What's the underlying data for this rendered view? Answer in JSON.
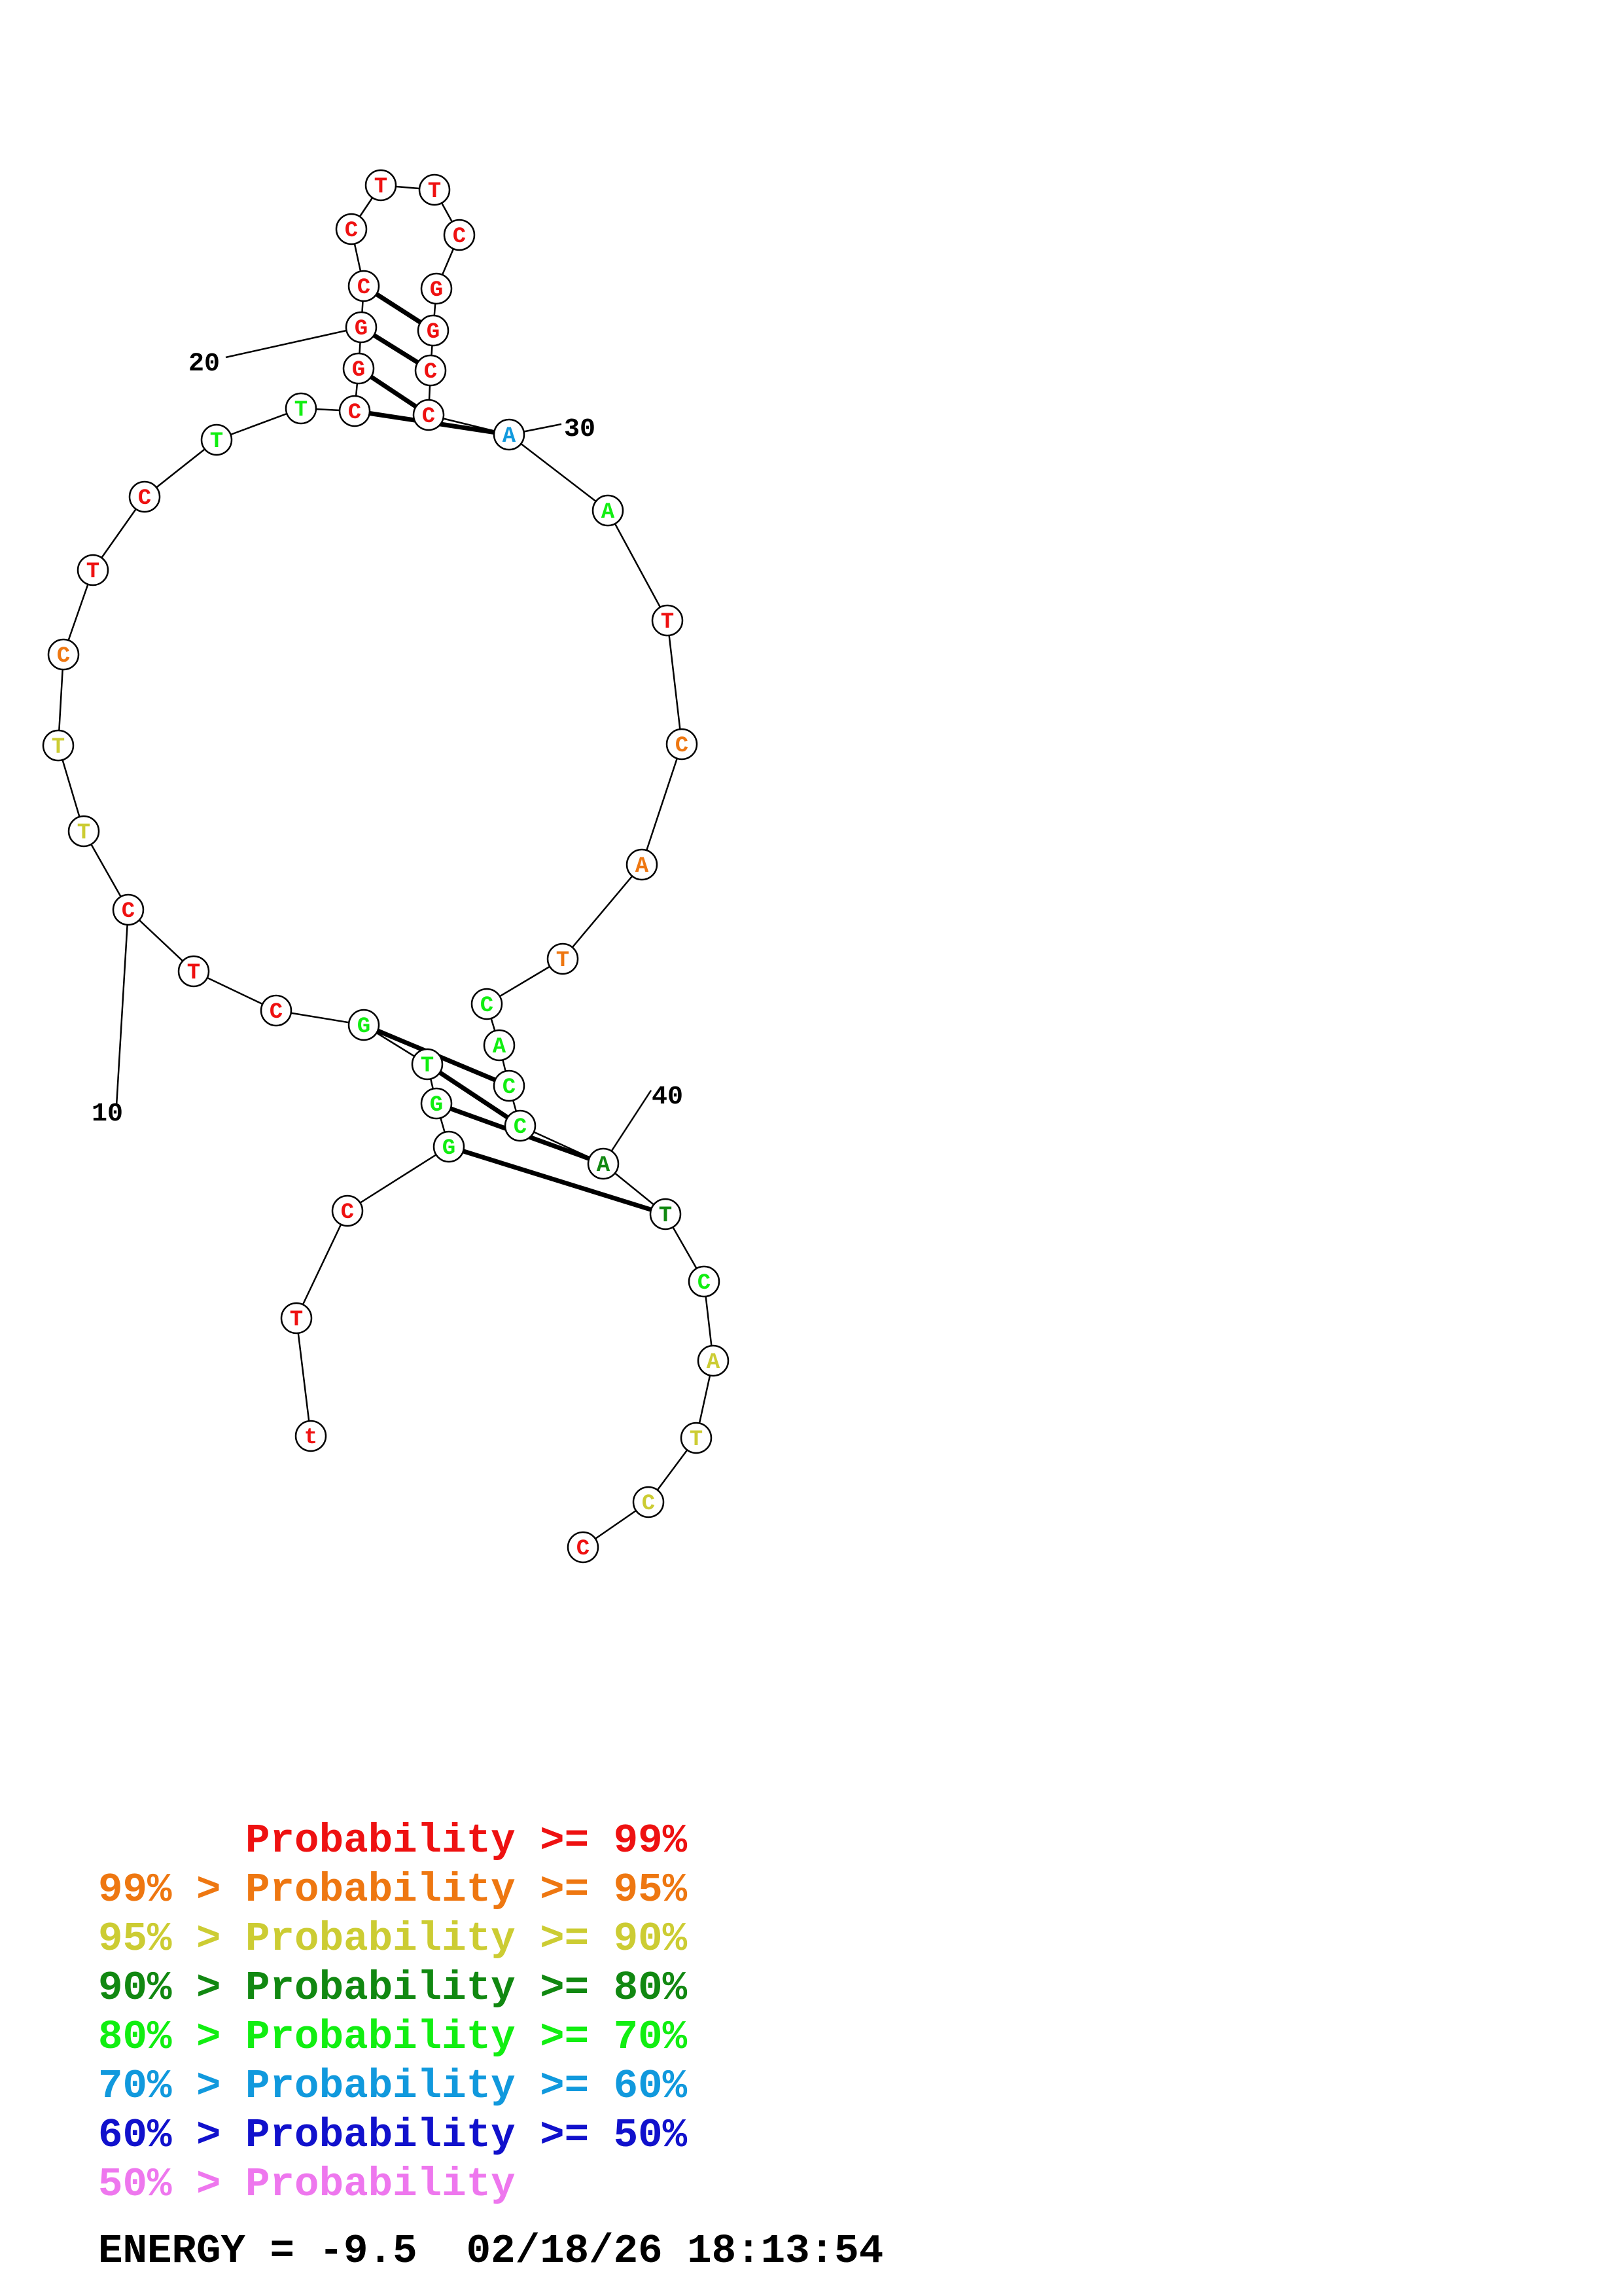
{
  "colors": {
    "p99": "#ee1111",
    "p95": "#ee7711",
    "p90": "#cccc33",
    "p80": "#118811",
    "p70": "#11ee11",
    "p60": "#1199dd",
    "p50": "#1111cc",
    "plow": "#ee77ee"
  },
  "structure": {
    "sequence": [
      "t",
      "T",
      "C",
      "G",
      "G",
      "T",
      "G",
      "C",
      "T",
      "C",
      "T",
      "T",
      "C",
      "T",
      "C",
      "T",
      "T",
      "C",
      "G",
      "G",
      "C",
      "C",
      "T",
      "T",
      "C",
      "G",
      "G",
      "C",
      "C",
      "A",
      "A",
      "T",
      "C",
      "A",
      "T",
      "C",
      "A",
      "C",
      "C",
      "A",
      "T",
      "C",
      "A",
      "T",
      "C",
      "C"
    ],
    "probability_class": [
      "p99",
      "p99",
      "p99",
      "p70",
      "p70",
      "p70",
      "p70",
      "p99",
      "p99",
      "p99",
      "p90",
      "p90",
      "p95",
      "p99",
      "p99",
      "p70",
      "p70",
      "p99",
      "p99",
      "p99",
      "p99",
      "p99",
      "p99",
      "p99",
      "p99",
      "p99",
      "p99",
      "p99",
      "p99",
      "p60",
      "p70",
      "p99",
      "p95",
      "p95",
      "p95",
      "p70",
      "p70",
      "p70",
      "p70",
      "p80",
      "p80",
      "p70",
      "p90",
      "p90",
      "p90",
      "p99"
    ],
    "pairs": [
      [
        4,
        41
      ],
      [
        5,
        40
      ],
      [
        6,
        39
      ],
      [
        7,
        38
      ],
      [
        18,
        30
      ],
      [
        19,
        29
      ],
      [
        20,
        28
      ],
      [
        21,
        27
      ]
    ],
    "position_labels": [
      "10",
      "20",
      "30",
      "40"
    ]
  },
  "legend": {
    "lines": [
      {
        "prefix": "",
        "text": "Probability >= 99%",
        "color": "p99"
      },
      {
        "prefix": "99% > ",
        "text": "Probability >= 95%",
        "color": "p95"
      },
      {
        "prefix": "95% > ",
        "text": "Probability >= 90%",
        "color": "p90"
      },
      {
        "prefix": "90% > ",
        "text": "Probability >= 80%",
        "color": "p80"
      },
      {
        "prefix": "80% > ",
        "text": "Probability >= 70%",
        "color": "p70"
      },
      {
        "prefix": "70% > ",
        "text": "Probability >= 60%",
        "color": "p60"
      },
      {
        "prefix": "60% > ",
        "text": "Probability >= 50%",
        "color": "p50"
      },
      {
        "prefix": "50% > ",
        "text": "Probability",
        "color": "plow"
      }
    ]
  },
  "energy_line": "ENERGY = -9.5  02/18/26 18:13:54"
}
